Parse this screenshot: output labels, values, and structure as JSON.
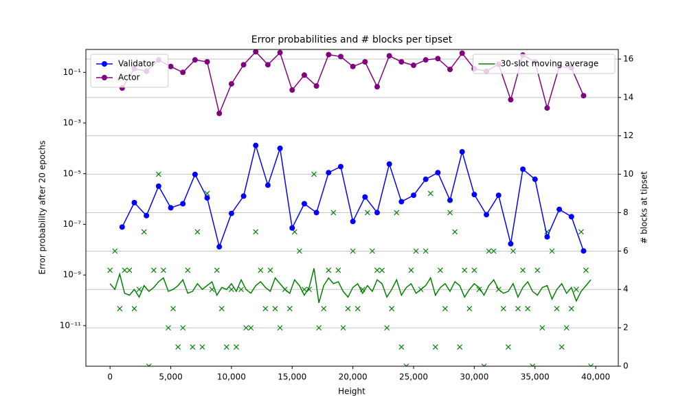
{
  "chart_data": {
    "type": "line",
    "title": "Error probabilities and # blocks per tipset",
    "xlabel": "Height",
    "ylabel": "Error probability after 20 epochs",
    "y2label": "# blocks at tipset",
    "ylabel_color": "blue",
    "y2label_color": "green",
    "xlim": [
      -1990,
      41860
    ],
    "xticks": [
      0,
      {
        "value": 5000,
        "label": "5,000"
      },
      {
        "value": 10000,
        "label": "10,000"
      },
      {
        "value": 15000,
        "label": "15,000"
      },
      {
        "value": 20000,
        "label": "20,000"
      },
      {
        "value": 25000,
        "label": "25,000"
      },
      {
        "value": 30000,
        "label": "30,000"
      },
      {
        "value": 35000,
        "label": "35,000"
      },
      {
        "value": 40000,
        "label": "40,000"
      }
    ],
    "ylim": [
      2.5e-13,
      0.8
    ],
    "log_y": true,
    "yticks": [
      {
        "value": 1e-11,
        "label": "10⁻¹¹"
      },
      {
        "value": 1e-09,
        "label": "10⁻⁹"
      },
      {
        "value": 1e-07,
        "label": "10⁻⁷"
      },
      {
        "value": 1e-05,
        "label": "10⁻⁵"
      },
      {
        "value": 0.001,
        "label": "10⁻³"
      },
      {
        "value": 0.1,
        "label": "10⁻¹"
      }
    ],
    "y2lim": [
      0,
      16.5
    ],
    "y2ticks": [
      0,
      2,
      4,
      6,
      8,
      10,
      12,
      14,
      16
    ],
    "grid_y2": true,
    "legend_y": "upper left",
    "legend_y2": "upper right",
    "series": [
      {
        "name": "Validator",
        "color": "blue",
        "type": "line",
        "marker": "o",
        "x": [
          1000,
          2000,
          3000,
          4000,
          5000,
          6000,
          7000,
          8000,
          9000,
          10000,
          11000,
          12000,
          13000,
          14000,
          15000,
          16000,
          17000,
          18000,
          19000,
          20000,
          21000,
          22000,
          23000,
          24000,
          25000,
          26000,
          27000,
          28000,
          29000,
          30000,
          31000,
          32000,
          33000,
          34000,
          35000,
          36000,
          37000,
          38000,
          39000
        ],
        "values": [
          7.8e-08,
          7.2e-07,
          2.2e-07,
          3.2e-06,
          4.5e-07,
          6.5e-07,
          9.3e-06,
          1.1e-06,
          1.3e-08,
          2.7e-07,
          1.3e-06,
          0.00013,
          3.5e-06,
          0.0001,
          7.2e-08,
          6.5e-07,
          2.9e-07,
          1.1e-05,
          1.9e-05,
          1.3e-07,
          1.2e-06,
          2.9e-07,
          2.4e-05,
          7.8e-07,
          1.4e-06,
          6e-06,
          1.1e-05,
          8.9e-07,
          7.3e-05,
          1.5e-06,
          2.4e-07,
          1.4e-06,
          1.7e-08,
          1.5e-05,
          6e-06,
          3.2e-08,
          3.9e-07,
          2e-07,
          8.9e-09
        ]
      },
      {
        "name": "Actor",
        "color": "purple",
        "type": "line",
        "marker": "o",
        "x": [
          1000,
          2000,
          3000,
          4000,
          5000,
          6000,
          7000,
          8000,
          9000,
          10000,
          11000,
          12000,
          13000,
          14000,
          15000,
          16000,
          17000,
          18000,
          19000,
          20000,
          21000,
          22000,
          23000,
          24000,
          25000,
          26000,
          27000,
          28000,
          29000,
          30000,
          31000,
          32000,
          33000,
          34000,
          35000,
          36000,
          37000,
          38000,
          39000
        ],
        "values": [
          0.024,
          0.14,
          0.11,
          0.31,
          0.17,
          0.1,
          0.31,
          0.26,
          0.0024,
          0.035,
          0.2,
          0.65,
          0.2,
          0.6,
          0.02,
          0.078,
          0.029,
          0.5,
          0.42,
          0.17,
          0.26,
          0.027,
          0.45,
          0.26,
          0.19,
          0.31,
          0.35,
          0.13,
          0.57,
          0.14,
          0.11,
          0.21,
          0.0083,
          0.48,
          0.26,
          0.0039,
          0.17,
          0.15,
          0.012
        ]
      },
      {
        "color": "green",
        "type": "scatter",
        "marker": "x",
        "axis": "y2",
        "x": [
          0,
          400,
          800,
          1200,
          1600,
          2000,
          2400,
          2800,
          3200,
          3600,
          4000,
          4400,
          4800,
          5200,
          5600,
          6000,
          6400,
          6800,
          7200,
          7600,
          8000,
          8400,
          8800,
          9200,
          9600,
          10000,
          10400,
          10800,
          11200,
          11600,
          12000,
          12400,
          12800,
          13200,
          13600,
          14000,
          14400,
          14800,
          15200,
          15600,
          16000,
          16400,
          16800,
          17200,
          17600,
          18000,
          18400,
          18800,
          19200,
          19600,
          20000,
          20400,
          20800,
          21200,
          21600,
          22000,
          22400,
          22800,
          23200,
          23600,
          24000,
          24400,
          24800,
          25200,
          25600,
          26000,
          26400,
          26800,
          27200,
          27600,
          28000,
          28400,
          28800,
          29200,
          29600,
          30000,
          30400,
          30800,
          31200,
          31600,
          32000,
          32400,
          32800,
          33200,
          33600,
          34000,
          34400,
          34800,
          35200,
          35600,
          36000,
          36400,
          36800,
          37200,
          37600,
          38000,
          38400,
          38800,
          39200,
          39600
        ],
        "values": [
          5,
          6,
          3,
          5,
          5,
          3,
          4,
          7,
          0,
          5,
          10,
          5,
          2,
          3,
          1,
          2,
          5,
          1,
          7,
          1,
          9,
          4,
          5,
          3,
          1,
          4,
          1,
          4,
          2,
          2,
          7,
          5,
          3,
          5,
          3,
          2,
          4,
          3,
          7,
          6,
          4,
          4,
          10,
          2,
          3,
          5,
          8,
          5,
          2,
          3,
          6,
          3,
          4,
          8,
          6,
          5,
          5,
          2,
          3,
          8,
          1,
          0,
          5,
          6,
          4,
          6,
          9,
          1,
          5,
          3,
          8,
          7,
          1,
          5,
          3,
          5,
          4,
          0,
          6,
          6,
          4,
          3,
          1,
          6,
          3,
          5,
          3,
          0,
          5,
          2,
          7,
          6,
          3,
          1,
          2,
          3,
          4,
          7,
          5,
          0
        ]
      },
      {
        "name": "30-slot moving average",
        "color": "green",
        "type": "line",
        "axis": "y2",
        "x": [
          0,
          400,
          800,
          1200,
          1600,
          2000,
          2400,
          2800,
          3200,
          3600,
          4000,
          4400,
          4800,
          5200,
          5600,
          6000,
          6400,
          6800,
          7200,
          7600,
          8000,
          8400,
          8800,
          9200,
          9600,
          10000,
          10400,
          10800,
          11200,
          11600,
          12000,
          12400,
          12800,
          13200,
          13600,
          14000,
          14400,
          14800,
          15200,
          15600,
          16000,
          16400,
          16800,
          17200,
          17600,
          18000,
          18400,
          18800,
          19200,
          19600,
          20000,
          20400,
          20800,
          21200,
          21600,
          22000,
          22400,
          22800,
          23200,
          23600,
          24000,
          24400,
          24800,
          25200,
          25600,
          26000,
          26400,
          26800,
          27200,
          27600,
          28000,
          28400,
          28800,
          29200,
          29600,
          30000,
          30400,
          30800,
          31200,
          31600,
          32000,
          32400,
          32800,
          33200,
          33600,
          34000,
          34400,
          34800,
          35200,
          35600,
          36000,
          36400,
          36800,
          37200,
          37600,
          38000,
          38400,
          38800,
          39200,
          39600
        ],
        "values": [
          4.3,
          4.0,
          4.8,
          3.8,
          3.7,
          4.0,
          3.6,
          4.2,
          3.9,
          4.1,
          4.4,
          4.6,
          3.9,
          4.0,
          4.2,
          4.5,
          3.8,
          3.9,
          4.3,
          4.0,
          4.2,
          4.4,
          3.7,
          4.1,
          4.0,
          4.3,
          3.9,
          4.5,
          4.0,
          3.8,
          4.2,
          4.4,
          4.1,
          3.9,
          4.6,
          4.3,
          4.0,
          3.8,
          4.5,
          4.2,
          3.7,
          4.1,
          5.1,
          3.3,
          4.2,
          4.6,
          4.3,
          4.4,
          3.9,
          3.6,
          4.1,
          4.3,
          3.8,
          4.2,
          3.9,
          4.5,
          4.3,
          3.6,
          4.0,
          4.5,
          3.7,
          4.1,
          4.3,
          3.8,
          4.0,
          4.2,
          4.6,
          3.7,
          4.1,
          4.3,
          3.9,
          4.4,
          4.2,
          3.6,
          4.0,
          4.3,
          4.1,
          3.7,
          4.2,
          4.5,
          4.0,
          3.8,
          3.9,
          4.3,
          3.6,
          4.1,
          4.4,
          3.9,
          3.7,
          4.1,
          4.2,
          3.5,
          4.0,
          4.3,
          3.8,
          4.1,
          3.4,
          3.9,
          4.2,
          4.5
        ]
      }
    ]
  }
}
